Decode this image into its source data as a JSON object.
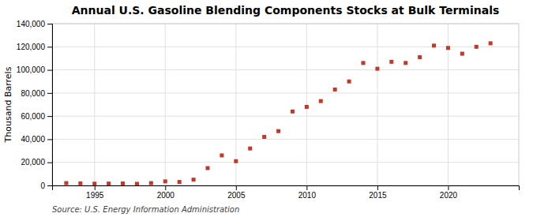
{
  "chart_data": {
    "type": "scatter",
    "title": "Annual U.S. Gasoline Blending Components Stocks at Bulk Terminals",
    "ylabel": "Thousand Barrels",
    "annotations": [
      "Source: U.S. Energy Information Administration"
    ],
    "x": [
      1993,
      1994,
      1995,
      1996,
      1997,
      1998,
      1999,
      2000,
      2001,
      2002,
      2003,
      2004,
      2005,
      2006,
      2007,
      2008,
      2009,
      2010,
      2011,
      2012,
      2013,
      2014,
      2015,
      2016,
      2017,
      2018,
      2019,
      2020,
      2021,
      2022,
      2023
    ],
    "values": [
      2000,
      1800,
      1500,
      1600,
      1700,
      1400,
      2000,
      3500,
      3000,
      5000,
      15000,
      26000,
      21000,
      32000,
      42000,
      47000,
      64000,
      68000,
      73000,
      83000,
      90000,
      106000,
      101000,
      107000,
      106000,
      111000,
      121000,
      119000,
      114000,
      120000,
      123000
    ],
    "color": "#c0392b",
    "marker": "square",
    "xlim": [
      1992,
      2025
    ],
    "xticks": [
      1995,
      2000,
      2005,
      2010,
      2015,
      2020
    ],
    "ylim": [
      0,
      140000
    ],
    "yticks": [
      0,
      {
        "value": 20000,
        "label": "20,000"
      },
      {
        "value": 40000,
        "label": "40,000"
      },
      {
        "value": 60000,
        "label": "60,000"
      },
      {
        "value": 80000,
        "label": "80,000"
      },
      {
        "value": 100000,
        "label": "100,000"
      },
      {
        "value": 120000,
        "label": "120,000"
      },
      {
        "value": 140000,
        "label": "140,000"
      }
    ],
    "grid": true
  }
}
